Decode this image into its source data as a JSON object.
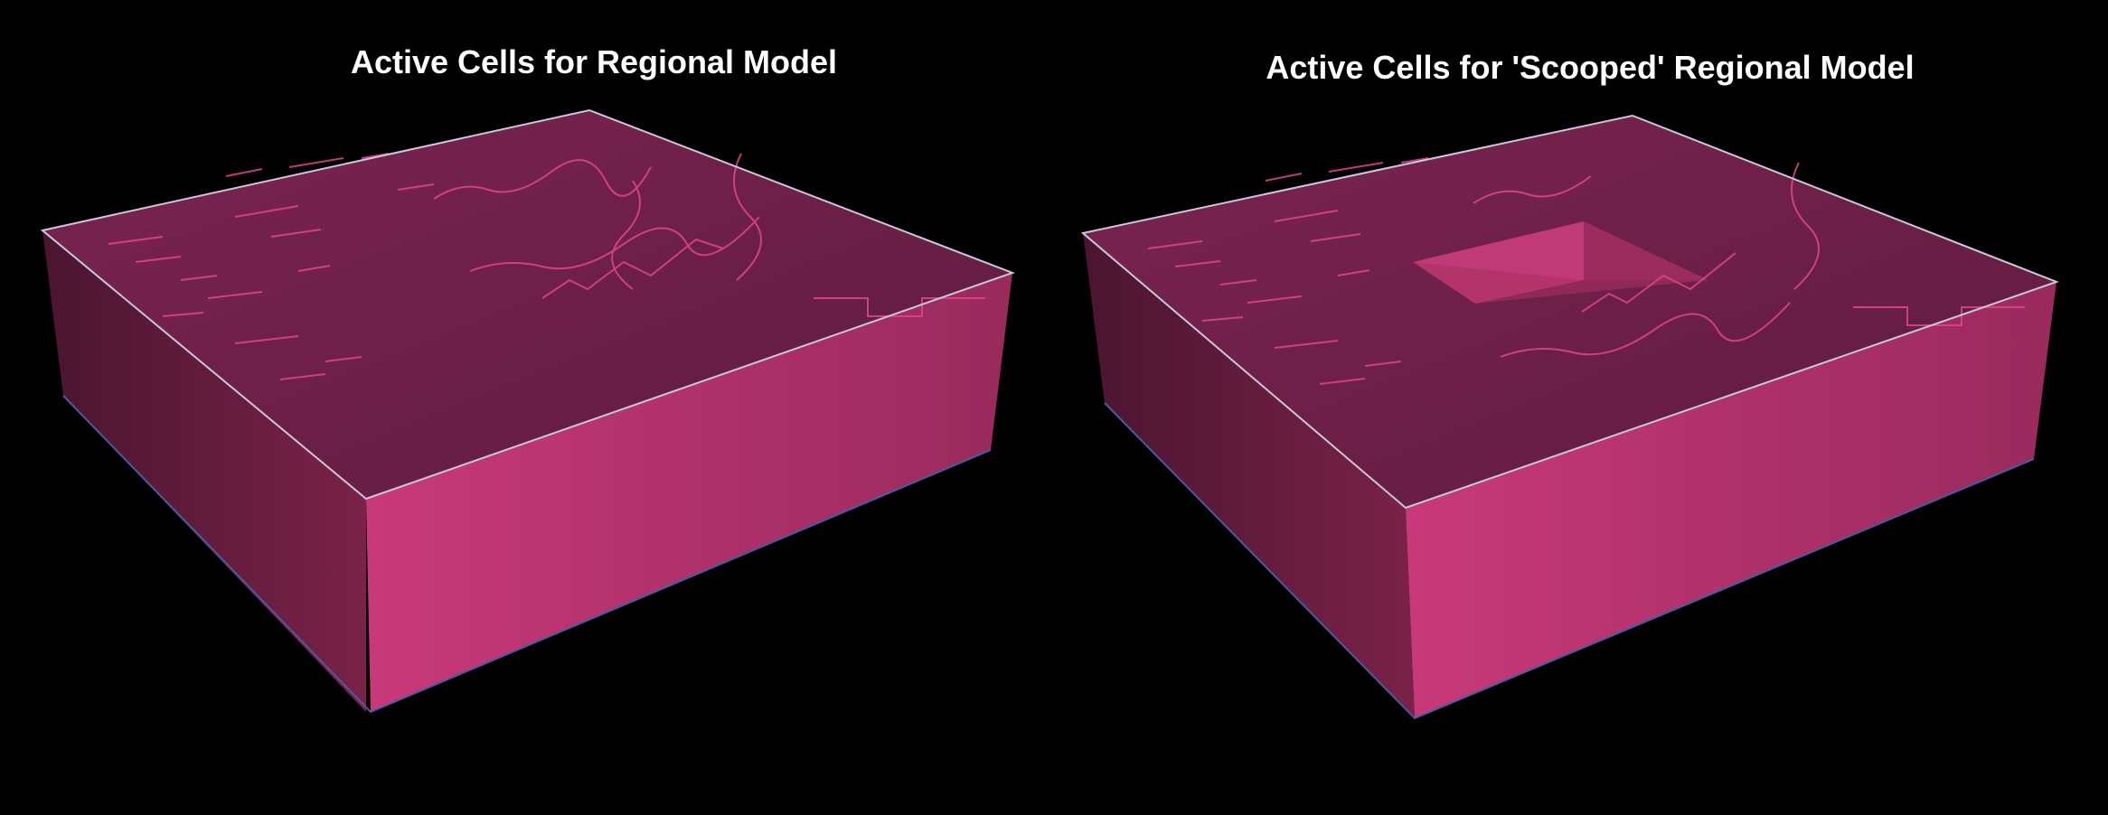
{
  "figure": {
    "background": "#000000",
    "block_colors": {
      "front_face": "#c03670",
      "left_face": "#6a1f3f",
      "top_face": "#6b1f45",
      "stream_cells": "#e0458e",
      "edge": "#c8c8d8",
      "base_edge": "#4a5aa0"
    },
    "panels": [
      {
        "title": "Active Cells for Regional Model",
        "scooped": false
      },
      {
        "title": "Active Cells for 'Scooped' Regional Model",
        "scooped": true
      }
    ]
  }
}
